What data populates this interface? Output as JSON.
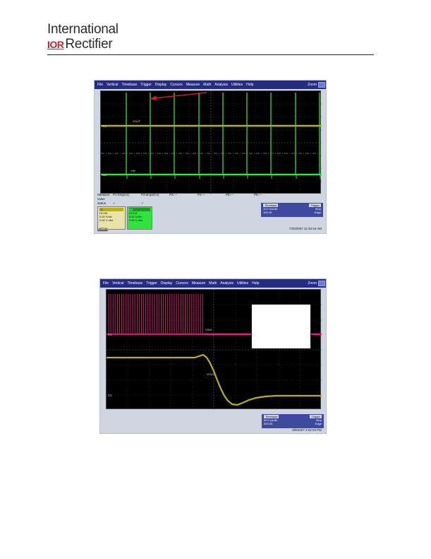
{
  "brand": {
    "line1": "International",
    "mark": "IOR",
    "line2": "Rectifier",
    "mark_color": "#d3202a"
  },
  "scope_menu": [
    "File",
    "Vertical",
    "Timebase",
    "Trigger",
    "Display",
    "Cursors",
    "Measure",
    "Math",
    "Analysis",
    "Utilities",
    "Help"
  ],
  "scope_zoom_label": "Zoom",
  "scope1": {
    "ch1_label": "C1",
    "ch2_label": "C2",
    "trace_label_top": "VOUT",
    "trace_label_bottom": "VIN",
    "measure_headers": [
      "Measure",
      "P1:freq(C1)",
      "P2:ampl(C4)",
      "P3:---",
      "P4:---",
      "P5:---",
      "P6:---"
    ],
    "measure_value_row": [
      "value",
      "",
      "",
      "",
      "",
      "",
      ""
    ],
    "measure_status_row": [
      "status",
      "✓",
      "✓",
      "",
      "",
      "",
      ""
    ],
    "ch_box_c1": [
      "C1",
      "DC1M",
      "5.00 V/div",
      "0.00 V ofst"
    ],
    "ch_box_c4": [
      "C4",
      "DC1M",
      "5.00 V/div",
      "0.00 V ofst"
    ],
    "timebase_box": [
      "Timebase",
      "Trigger",
      "10.0 ms/div",
      "Stop",
      "100 kS",
      "Edge"
    ],
    "timestamp": "7/20/2007 11:40:15 AM",
    "footer_logo": "LeCroy",
    "colors": {
      "yellow": "#b9b018",
      "green": "#2fe43a",
      "magenta": "#e1207a"
    }
  },
  "scope2": {
    "ch1_label": "C1",
    "ch2_label": "C2",
    "trace_label_top": "VSW",
    "trace_label_bottom": "VOUT",
    "timebase_box": [
      "Timebase",
      "Trigger",
      "50.0 µs/div",
      "Stop",
      "500 kS",
      "Edge"
    ],
    "timestamp": "8/9/2007 2:02:03 PM"
  }
}
